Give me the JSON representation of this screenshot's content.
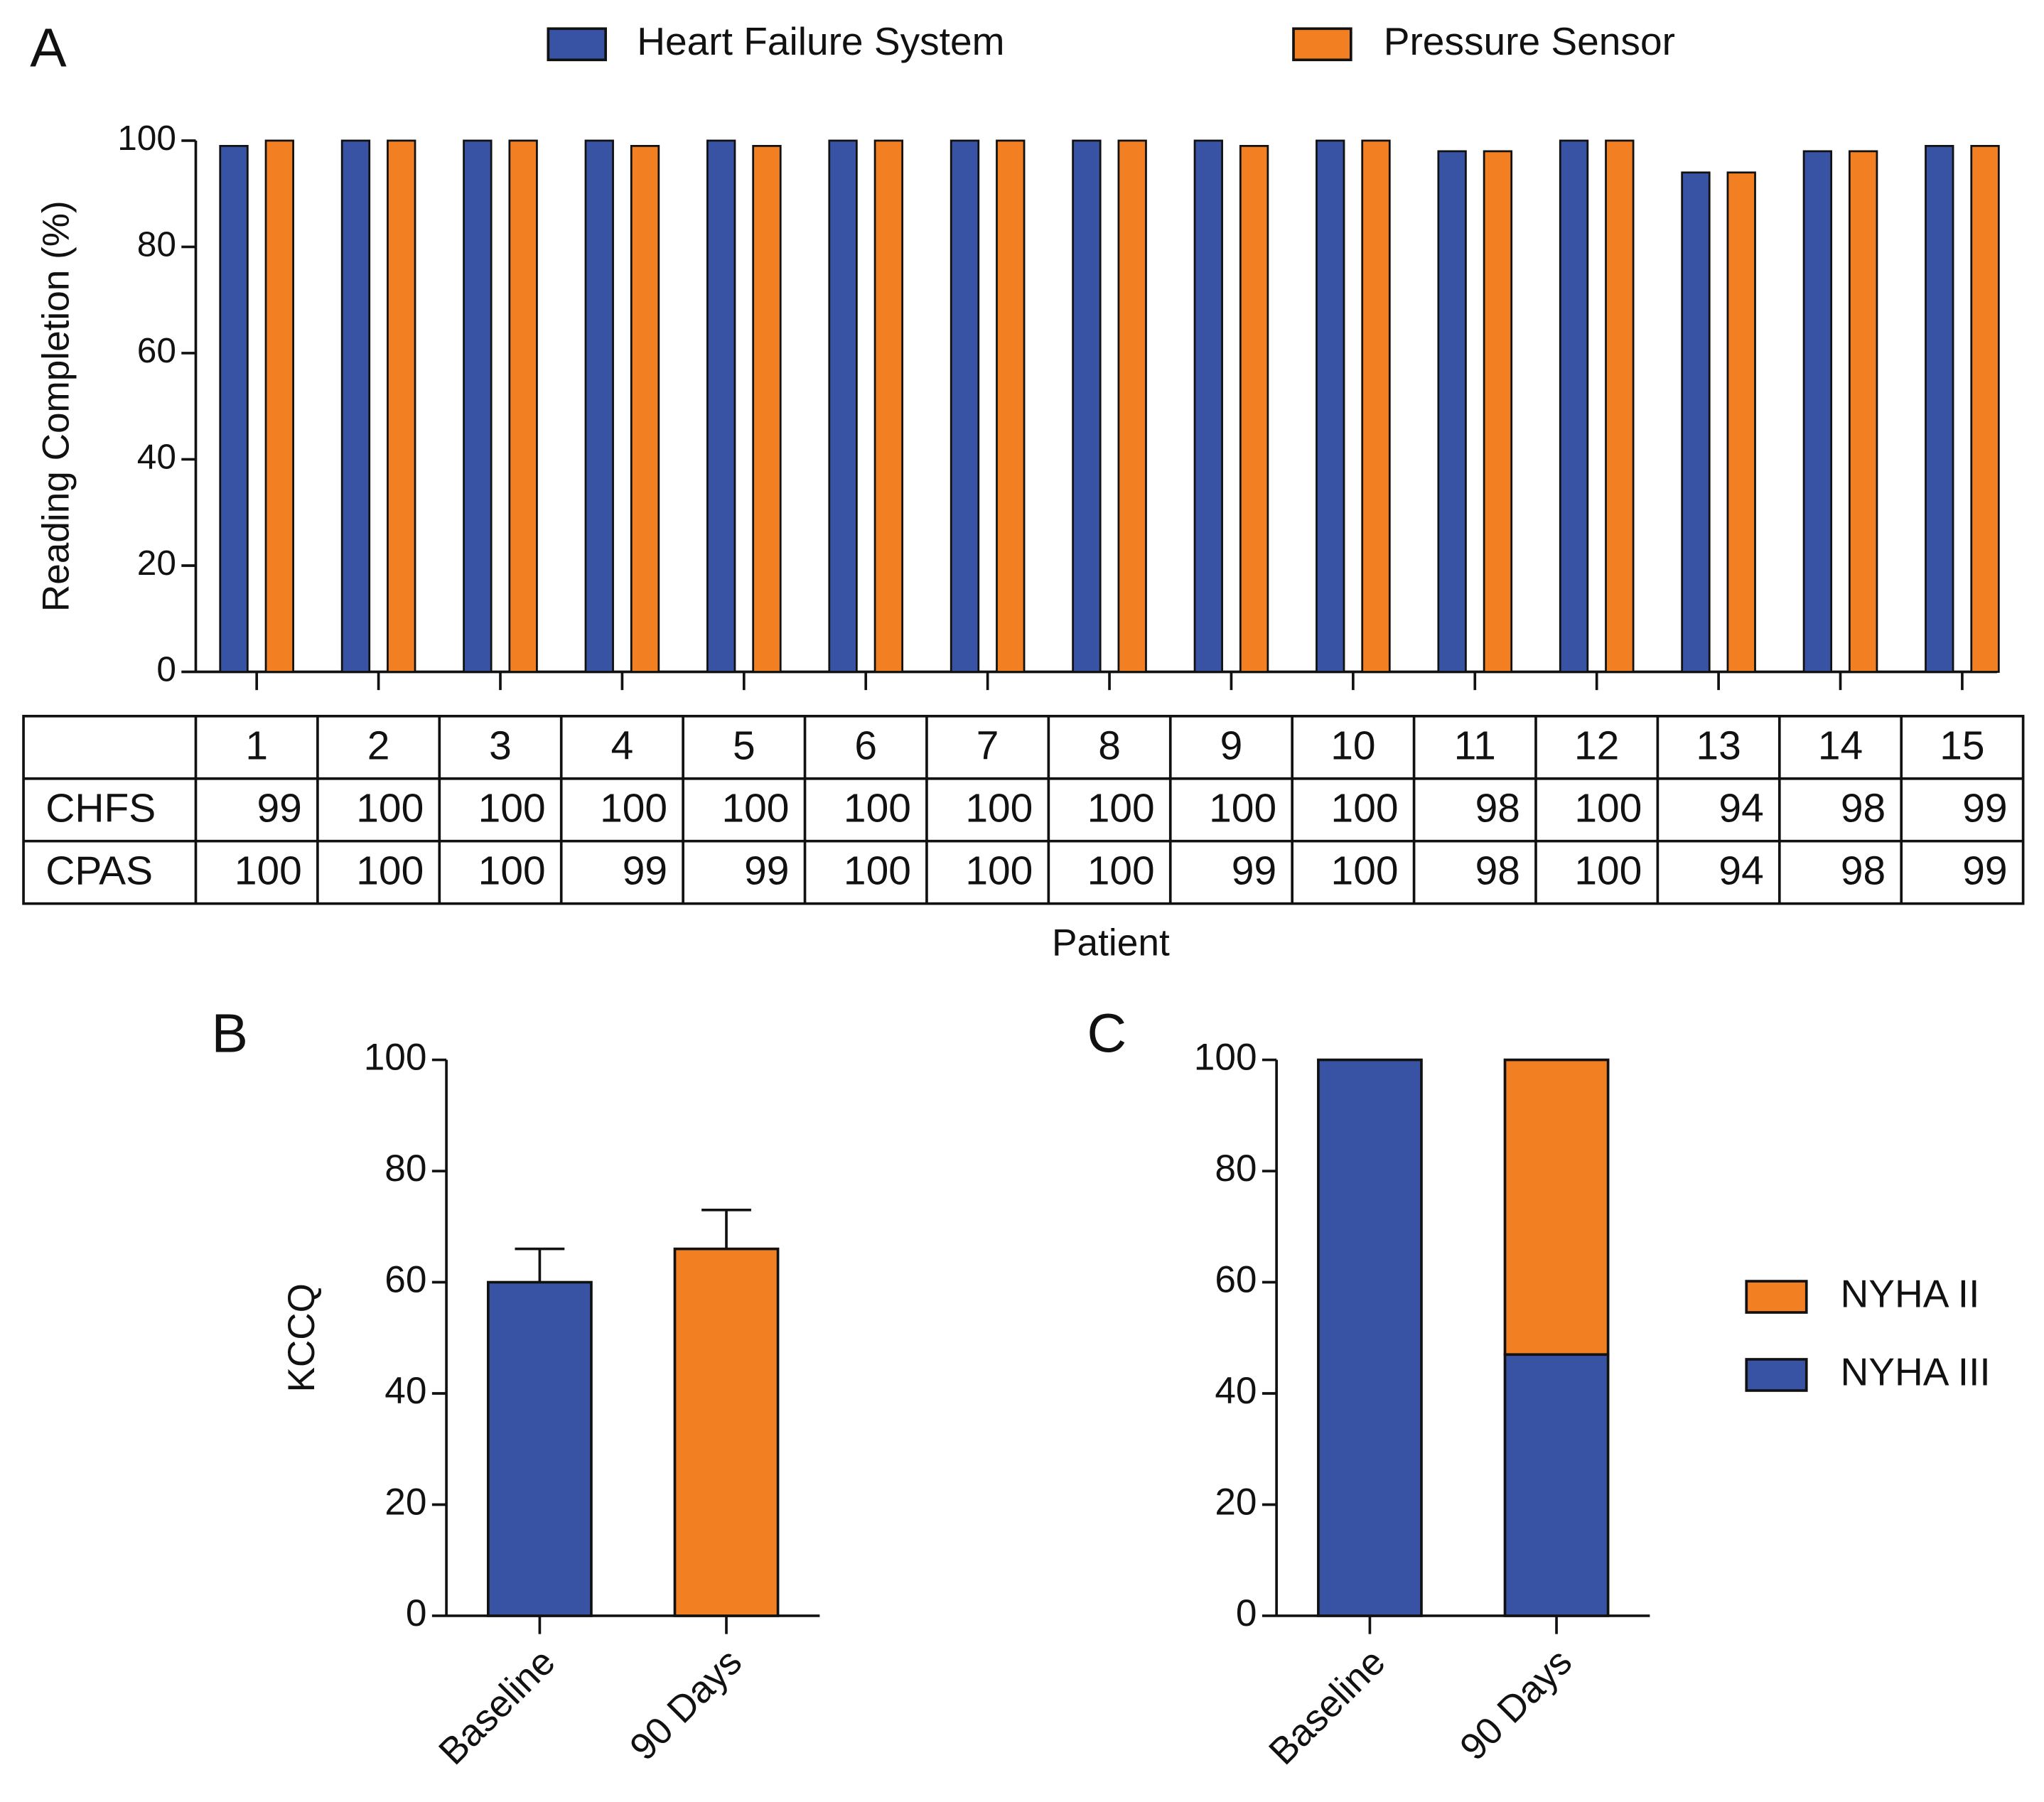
{
  "chart_data": [
    {
      "type": "bar",
      "panel": "A",
      "ylabel": "Reading Completion (%)",
      "xlabel": "Patient",
      "categories": [
        "1",
        "2",
        "3",
        "4",
        "5",
        "6",
        "7",
        "8",
        "9",
        "10",
        "11",
        "12",
        "13",
        "14",
        "15"
      ],
      "series": [
        {
          "name": "Heart Failure System",
          "color": "#3953a4",
          "values": [
            99,
            100,
            100,
            100,
            100,
            100,
            100,
            100,
            100,
            100,
            98,
            100,
            94,
            98,
            99
          ]
        },
        {
          "name": "Pressure Sensor",
          "color": "#f28023",
          "values": [
            100,
            100,
            100,
            99,
            99,
            100,
            100,
            100,
            99,
            100,
            98,
            100,
            94,
            98,
            99
          ]
        }
      ],
      "table_row_labels": [
        "CHFS",
        "CPAS"
      ],
      "ylim": [
        0,
        100
      ],
      "yticks": [
        0,
        20,
        40,
        60,
        80,
        100
      ],
      "legend": "top"
    },
    {
      "type": "bar",
      "panel": "B",
      "ylabel": "KCCQ",
      "categories": [
        "Baseline",
        "90 Days"
      ],
      "values": [
        60,
        66
      ],
      "errors": [
        6,
        7
      ],
      "colors": [
        "#3953a4",
        "#f28023"
      ],
      "ylim": [
        0,
        100
      ],
      "yticks": [
        0,
        20,
        40,
        60,
        80,
        100
      ]
    },
    {
      "type": "stacked_bar",
      "panel": "C",
      "categories": [
        "Baseline",
        "90 Days"
      ],
      "series": [
        {
          "name": "NYHA III",
          "color": "#3953a4",
          "values": [
            100,
            47
          ]
        },
        {
          "name": "NYHA II",
          "color": "#f28023",
          "values": [
            0,
            53
          ]
        }
      ],
      "ylim": [
        0,
        100
      ],
      "yticks": [
        0,
        20,
        40,
        60,
        80,
        100
      ],
      "legend": "right"
    }
  ]
}
